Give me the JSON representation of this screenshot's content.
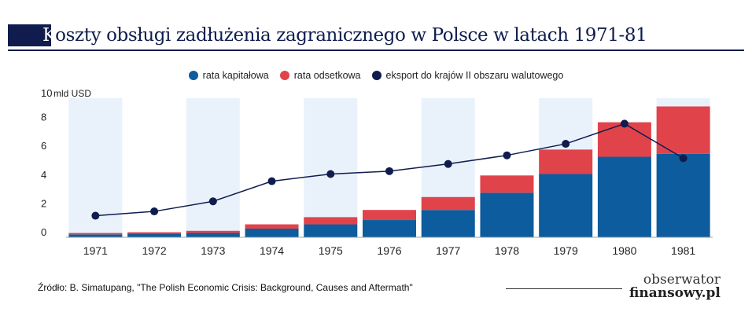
{
  "title": {
    "first_letter": "K",
    "rest": "oszty obsługi zadłużenia zagranicznego w Polsce w latach 1971-81"
  },
  "source": "Źródło: B. Simatupang, \"The Polish Economic Crisis: Background, Causes and Aftermath\"",
  "logo": {
    "line1": "obserwator",
    "line2": "finansowy.pl"
  },
  "colors": {
    "capital": "#0d5c9e",
    "interest": "#e1434b",
    "export": "#0f1c4d",
    "band": "#e9f2fb",
    "title": "#0f1c4d"
  },
  "chart_data": {
    "type": "bar",
    "stacked": true,
    "categories": [
      "1971",
      "1972",
      "1973",
      "1974",
      "1975",
      "1976",
      "1977",
      "1978",
      "1979",
      "1980",
      "1981"
    ],
    "series": [
      {
        "name": "rata kapitałowa",
        "type": "bar",
        "values": [
          0.2,
          0.25,
          0.3,
          0.6,
          0.9,
          1.2,
          1.9,
          3.1,
          4.4,
          5.6,
          5.8
        ]
      },
      {
        "name": "rata odsetkowa",
        "type": "bar",
        "values": [
          0.1,
          0.1,
          0.15,
          0.3,
          0.5,
          0.7,
          0.9,
          1.2,
          1.7,
          2.4,
          3.3
        ]
      },
      {
        "name": "eksport do krajów II obszaru walutowego",
        "type": "line",
        "values": [
          1.5,
          1.8,
          2.5,
          3.9,
          4.4,
          4.6,
          5.1,
          5.7,
          6.5,
          7.9,
          5.5
        ]
      }
    ],
    "ylabel": "mld USD",
    "ylim": [
      0,
      10
    ],
    "yticks": [
      0,
      2,
      4,
      6,
      8,
      10
    ],
    "legend_position": "top-center",
    "grid": false
  }
}
